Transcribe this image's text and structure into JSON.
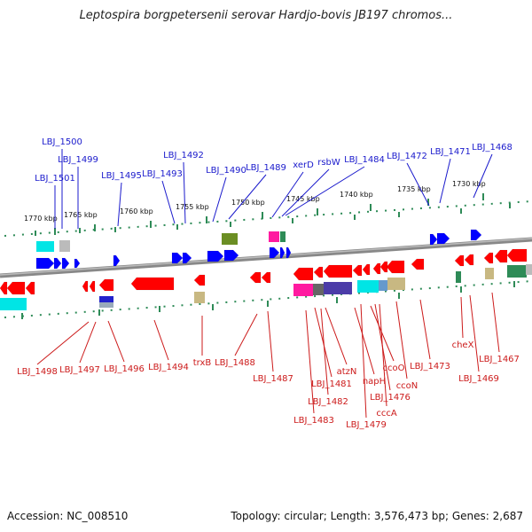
{
  "title": "Leptospira borgpetersenii serovar Hardjo-bovis JB197 chromos...",
  "footer": {
    "accession": "Accession: NC_008510",
    "summary": "Topology: circular; Length: 3,576,473 bp; Genes: 2,687"
  },
  "colors": {
    "forward_label": "#1a1acc",
    "reverse_label": "#cc1a1a",
    "forward_gene": "#0000ff",
    "reverse_gene": "#ff0000",
    "tick": "#2e8b57",
    "backbone": "#888888"
  },
  "scale_ticks": [
    {
      "label": "1770 kbp"
    },
    {
      "label": "1765 kbp"
    },
    {
      "label": "1760 kbp"
    },
    {
      "label": "1755 kbp"
    },
    {
      "label": "1750 kbp"
    },
    {
      "label": "1745 kbp"
    },
    {
      "label": "1740 kbp"
    },
    {
      "label": "1735 kbp"
    },
    {
      "label": "1730 kbp"
    }
  ],
  "top_labels": [
    {
      "text": "LBJ_1500"
    },
    {
      "text": "LBJ_1499"
    },
    {
      "text": "LBJ_1501"
    },
    {
      "text": "LBJ_1495"
    },
    {
      "text": "LBJ_1493"
    },
    {
      "text": "LBJ_1492"
    },
    {
      "text": "LBJ_1490"
    },
    {
      "text": "LBJ_1489"
    },
    {
      "text": "xerD"
    },
    {
      "text": "rsbW"
    },
    {
      "text": "LBJ_1484"
    },
    {
      "text": "LBJ_1472"
    },
    {
      "text": "LBJ_1471"
    },
    {
      "text": "LBJ_1468"
    }
  ],
  "bottom_labels": [
    {
      "text": "LBJ_1498"
    },
    {
      "text": "LBJ_1497"
    },
    {
      "text": "LBJ_1496"
    },
    {
      "text": "LBJ_1494"
    },
    {
      "text": "trxB"
    },
    {
      "text": "LBJ_1488"
    },
    {
      "text": "LBJ_1487"
    },
    {
      "text": "LBJ_1481"
    },
    {
      "text": "atzN"
    },
    {
      "text": "LBJ_1482"
    },
    {
      "text": "LBJ_1483"
    },
    {
      "text": "napH"
    },
    {
      "text": "LBJ_1479"
    },
    {
      "text": "ccoO"
    },
    {
      "text": "LBJ_1476"
    },
    {
      "text": "cccA"
    },
    {
      "text": "ccoN"
    },
    {
      "text": "LBJ_1473"
    },
    {
      "text": "cheX"
    },
    {
      "text": "LBJ_1469"
    },
    {
      "text": "LBJ_1467"
    }
  ]
}
